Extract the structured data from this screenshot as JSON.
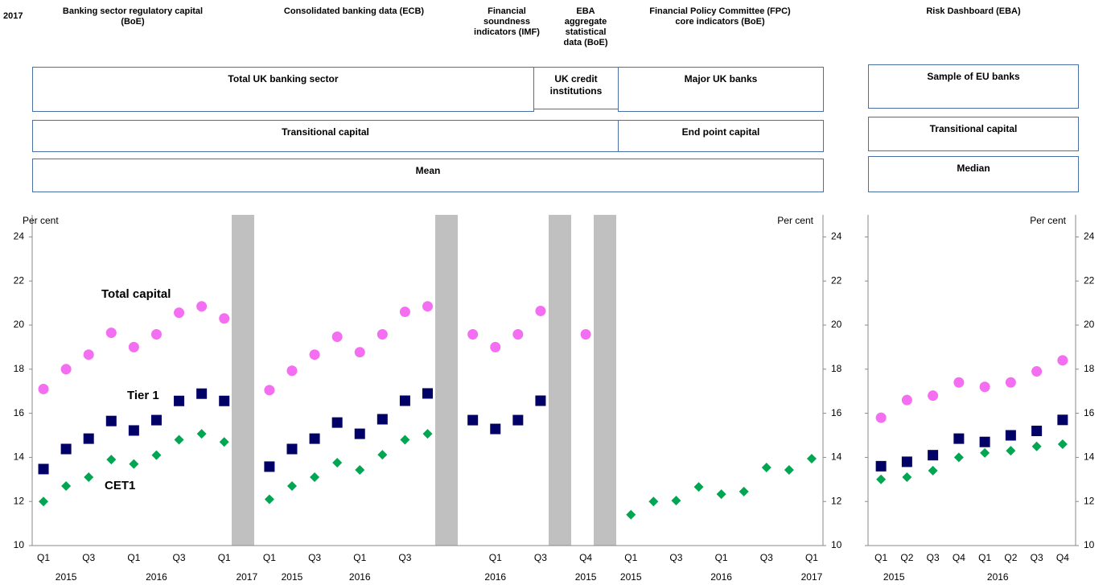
{
  "header": {
    "corner": "2017",
    "columns": [
      [
        "Banking sector regulatory capital",
        "(BoE)"
      ],
      [
        "Consolidated banking data (ECB)"
      ],
      [
        "Financial",
        "soundness",
        "indicators (IMF)"
      ],
      [
        "EBA",
        "aggregate",
        "statistical",
        "data (BoE)"
      ],
      [
        "Financial Policy Committee (FPC)",
        "core indicators (BoE)"
      ],
      [
        "Risk Dashboard  (EBA)"
      ]
    ],
    "boxes": [
      "Total UK banking sector",
      [
        "UK credit",
        "institutions"
      ],
      "Major UK banks",
      "Sample of EU banks",
      "Transitional capital",
      "End point capital",
      "Transitional capital",
      "Mean",
      "Median"
    ]
  },
  "chart_data": [
    {
      "type": "dot",
      "ylabel": "Per cent",
      "ylabel_right": "Per cent",
      "ylim": [
        10,
        25
      ],
      "yticks": [
        10,
        12,
        14,
        16,
        18,
        20,
        22,
        24
      ],
      "grid": false,
      "categories": [
        "Q1",
        null,
        "Q3",
        null,
        "Q1",
        null,
        "Q3",
        null,
        "Q1",
        null,
        "Q1",
        null,
        "Q3",
        null,
        "Q1",
        null,
        "Q3",
        null,
        null,
        null,
        "Q1",
        null,
        "Q3",
        null,
        "Q4",
        null,
        "Q1",
        null,
        "Q3",
        null,
        "Q1",
        null,
        "Q3",
        null,
        "Q1"
      ],
      "years": [
        null,
        "2015",
        null,
        null,
        null,
        "2016",
        null,
        null,
        null,
        "2017",
        null,
        "2015",
        null,
        null,
        "2016",
        null,
        null,
        null,
        null,
        null,
        "2016",
        null,
        null,
        null,
        "2015",
        null,
        "2015",
        null,
        null,
        null,
        "2016",
        null,
        null,
        null,
        "2017"
      ],
      "series": [
        {
          "name": "Total capital",
          "color": "#f36ef0",
          "marker": "circle",
          "values": [
            17.1,
            18.0,
            18.66,
            19.65,
            19.0,
            19.58,
            20.56,
            20.85,
            20.3,
            null,
            17.05,
            17.93,
            18.66,
            19.47,
            18.77,
            19.58,
            20.6,
            20.85,
            null,
            19.58,
            19.0,
            19.58,
            20.64,
            null,
            19.58,
            null,
            null,
            null,
            null,
            null,
            null,
            null,
            null,
            null,
            null
          ]
        },
        {
          "name": "Tier 1",
          "color": "#000066",
          "marker": "square",
          "values": [
            13.47,
            14.38,
            14.85,
            15.65,
            15.22,
            15.69,
            16.56,
            16.89,
            16.56,
            null,
            13.58,
            14.38,
            14.85,
            15.58,
            15.07,
            15.73,
            16.57,
            16.9,
            null,
            15.69,
            15.29,
            15.69,
            16.57,
            null,
            null,
            null,
            null,
            null,
            null,
            null,
            null,
            null,
            null,
            null,
            null
          ]
        },
        {
          "name": "CET1",
          "color": "#00a651",
          "marker": "diamond",
          "values": [
            12.0,
            12.7,
            13.1,
            13.9,
            13.7,
            14.1,
            14.8,
            15.07,
            14.7,
            null,
            12.1,
            12.7,
            13.1,
            13.76,
            13.43,
            14.12,
            14.8,
            15.07,
            null,
            null,
            null,
            null,
            null,
            null,
            null,
            null,
            11.4,
            12.0,
            12.04,
            12.66,
            12.33,
            12.45,
            13.54,
            13.43,
            13.94
          ]
        }
      ]
    },
    {
      "type": "dot",
      "ylabel_right": "Per cent",
      "ylim": [
        10,
        25
      ],
      "yticks": [
        10,
        12,
        14,
        16,
        18,
        20,
        22,
        24
      ],
      "grid": false,
      "categories": [
        "Q1",
        "Q2",
        "Q3",
        "Q4",
        "Q1",
        "Q2",
        "Q3",
        "Q4"
      ],
      "years": [
        "2015",
        null,
        null,
        null,
        "2016",
        null,
        null,
        null
      ],
      "series": [
        {
          "color": "#f36ef0",
          "marker": "circle",
          "values": [
            15.8,
            16.6,
            16.8,
            17.4,
            17.2,
            17.4,
            17.9,
            18.4
          ]
        },
        {
          "color": "#000066",
          "marker": "square",
          "values": [
            13.6,
            13.8,
            14.1,
            14.85,
            14.7,
            15.0,
            15.2,
            15.7
          ]
        },
        {
          "color": "#00a651",
          "marker": "diamond",
          "values": [
            13.0,
            13.1,
            13.4,
            14.0,
            14.2,
            14.3,
            14.5,
            14.6
          ]
        }
      ]
    }
  ]
}
